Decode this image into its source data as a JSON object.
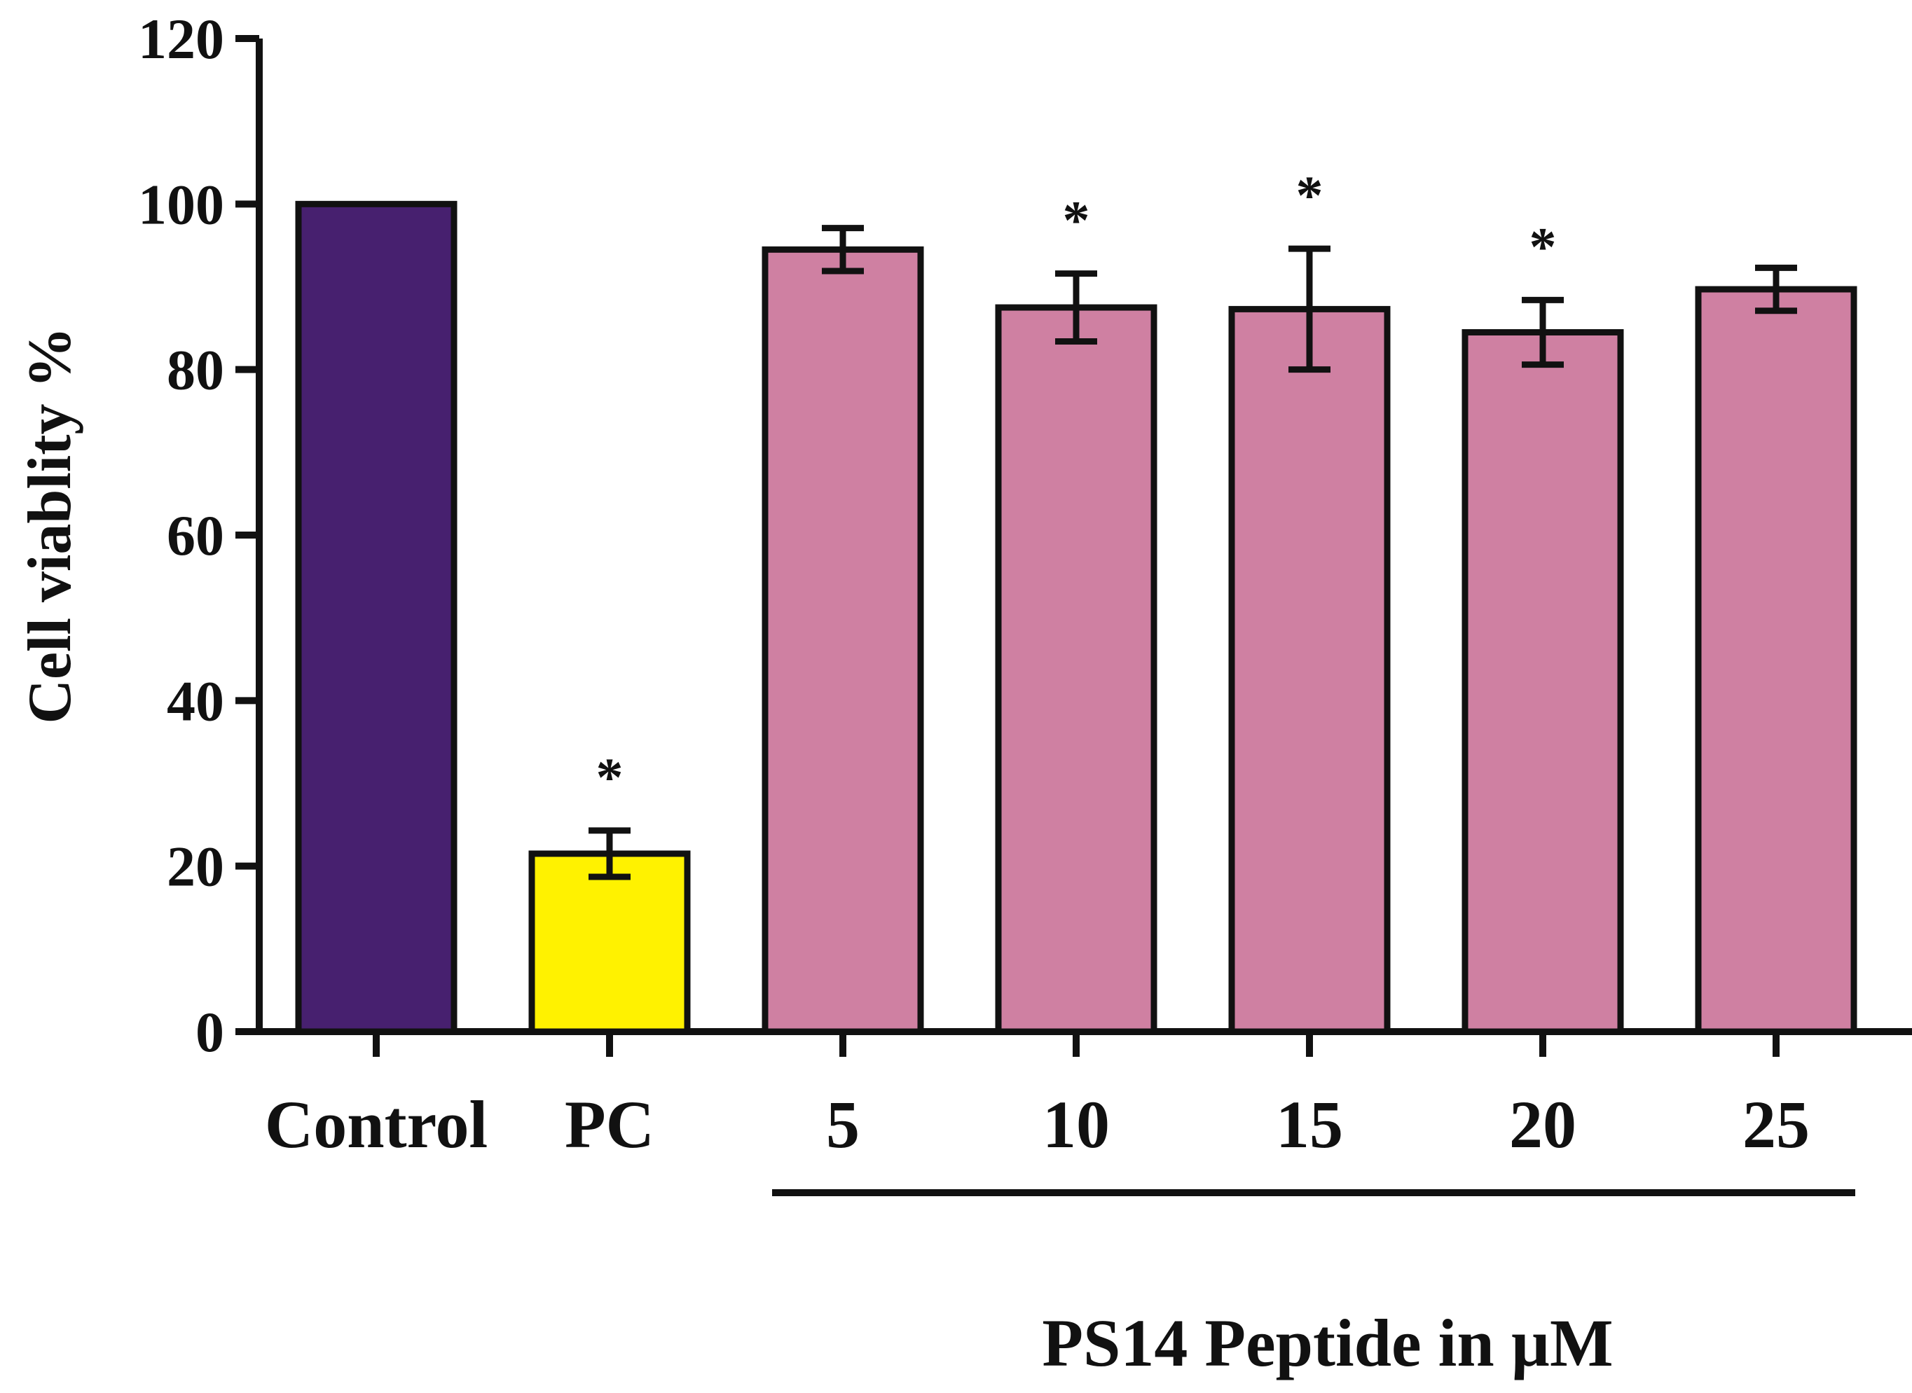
{
  "chart_data": {
    "type": "bar",
    "title": "",
    "ylabel": "Cell viablity %",
    "xlabel": "",
    "ylim": [
      0,
      120
    ],
    "yticks": [
      "0",
      "20",
      "40",
      "60",
      "80",
      "100",
      "120"
    ],
    "categories": [
      "Control",
      "PC",
      "5",
      "10",
      "15",
      "20",
      "25"
    ],
    "values": [
      100,
      21.5,
      94.5,
      87.5,
      87.3,
      84.5,
      89.7
    ],
    "errors": [
      0,
      2.8,
      2.6,
      4.1,
      7.3,
      3.9,
      2.6
    ],
    "significance": [
      "",
      "*",
      "",
      "*",
      "*",
      "*",
      ""
    ],
    "bar_colors": [
      "#47206f",
      "#fff200",
      "#cf80a2",
      "#cf80a2",
      "#cf80a2",
      "#cf80a2",
      "#cf80a2"
    ],
    "group_label": "PS14 Peptide in µM",
    "group_categories": [
      "5",
      "10",
      "15",
      "20",
      "25"
    ],
    "grid": false
  }
}
